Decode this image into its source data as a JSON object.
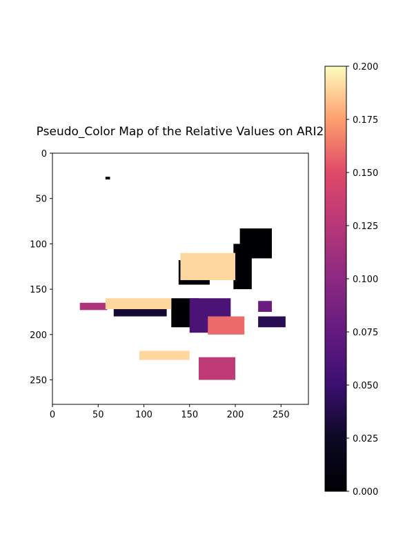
{
  "chart_data": {
    "type": "heatmap",
    "title": "Pseudo_Color Map of the Relative Values on ARI2",
    "xlabel": "",
    "ylabel": "",
    "xlim": [
      0,
      280
    ],
    "ylim": [
      277,
      0
    ],
    "x_ticks": [
      0,
      50,
      100,
      150,
      200,
      250
    ],
    "y_ticks": [
      0,
      50,
      100,
      150,
      200,
      250
    ],
    "x_tick_labels": [
      "0",
      "50",
      "100",
      "150",
      "200",
      "250"
    ],
    "y_tick_labels": [
      "0",
      "50",
      "100",
      "150",
      "200",
      "250"
    ],
    "colormap": "magma",
    "colorbar": {
      "min": 0.0,
      "max": 0.2,
      "ticks": [
        0.0,
        0.025,
        0.05,
        0.075,
        0.1,
        0.125,
        0.15,
        0.175,
        0.2
      ],
      "tick_labels": [
        "0.000",
        "0.025",
        "0.050",
        "0.075",
        "0.100",
        "0.125",
        "0.150",
        "0.175",
        "0.200"
      ]
    },
    "regions": [
      {
        "x": [
          205,
          240
        ],
        "y": [
          83,
          116
        ],
        "value": 0.0
      },
      {
        "x": [
          198,
          218
        ],
        "y": [
          100,
          150
        ],
        "value": 0.0
      },
      {
        "x": [
          138,
          172
        ],
        "y": [
          118,
          145
        ],
        "value": 0.0
      },
      {
        "x": [
          130,
          160
        ],
        "y": [
          160,
          192
        ],
        "value": 0.0
      },
      {
        "x": [
          150,
          195
        ],
        "y": [
          160,
          198
        ],
        "value": 0.06
      },
      {
        "x": [
          67,
          125
        ],
        "y": [
          170,
          180
        ],
        "value": 0.03
      },
      {
        "x": [
          30,
          60
        ],
        "y": [
          165,
          173
        ],
        "value": 0.12
      },
      {
        "x": [
          58,
          130
        ],
        "y": [
          160,
          172
        ],
        "value": 0.19
      },
      {
        "x": [
          140,
          200
        ],
        "y": [
          110,
          140
        ],
        "value": 0.19
      },
      {
        "x": [
          170,
          210
        ],
        "y": [
          180,
          200
        ],
        "value": 0.16
      },
      {
        "x": [
          225,
          255
        ],
        "y": [
          180,
          192
        ],
        "value": 0.04
      },
      {
        "x": [
          160,
          200
        ],
        "y": [
          225,
          250
        ],
        "value": 0.13
      },
      {
        "x": [
          95,
          150
        ],
        "y": [
          218,
          228
        ],
        "value": 0.19
      },
      {
        "x": [
          225,
          240
        ],
        "y": [
          163,
          175
        ],
        "value": 0.08
      },
      {
        "x": [
          58,
          63
        ],
        "y": [
          26,
          29
        ],
        "value": 0.0
      }
    ]
  }
}
